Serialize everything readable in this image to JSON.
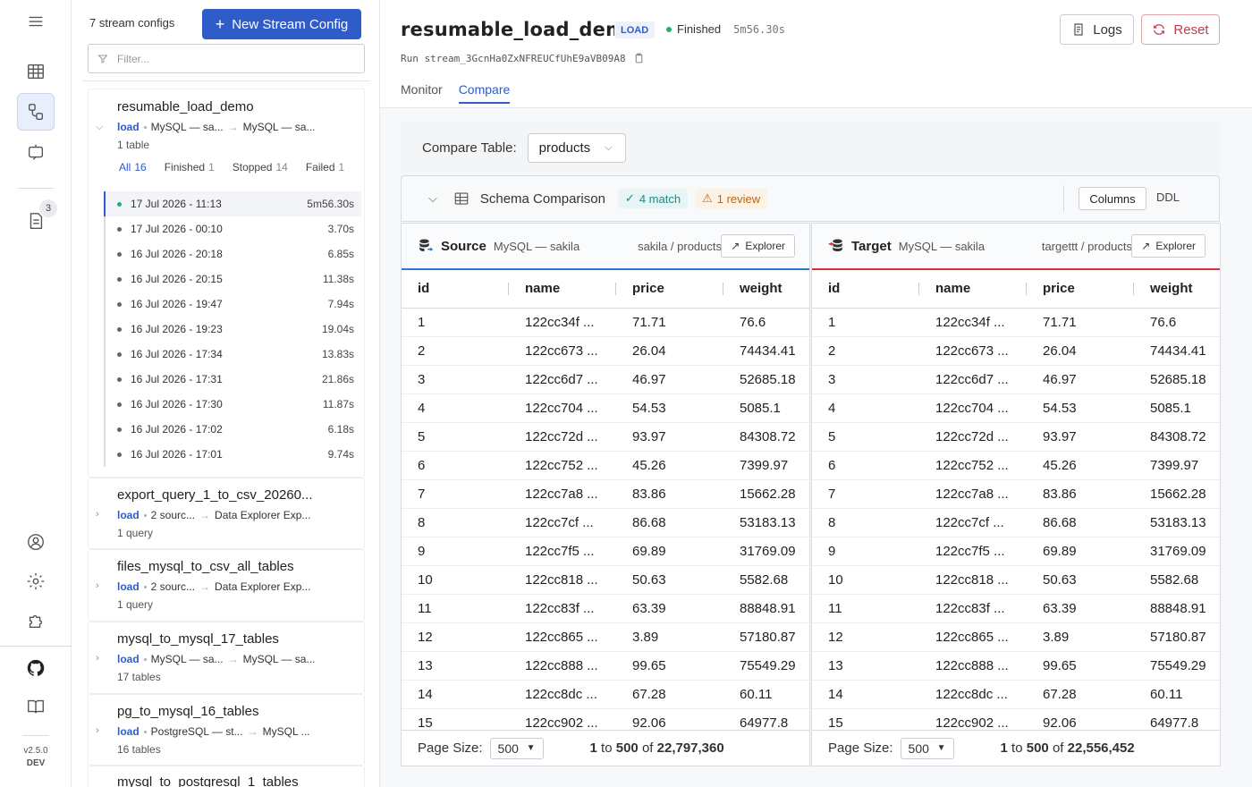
{
  "app": {
    "version": "v2.5.0",
    "env": "DEV",
    "notif_count": "3"
  },
  "streams": {
    "count_label": "7 stream configs",
    "new_button": "New Stream Config",
    "filter_placeholder": "Filter...",
    "configs": [
      {
        "name": "resumable_load_demo",
        "mode": "load",
        "source": "MySQL — sa...",
        "target": "MySQL — sa...",
        "sub": "1 table"
      },
      {
        "name": "export_query_1_to_csv_20260...",
        "mode": "load",
        "source": "2 sourc...",
        "target": "Data Explorer Exp...",
        "sub": "1 query"
      },
      {
        "name": "files_mysql_to_csv_all_tables",
        "mode": "load",
        "source": "2 sourc...",
        "target": "Data Explorer Exp...",
        "sub": "1 query"
      },
      {
        "name": "mysql_to_mysql_17_tables",
        "mode": "load",
        "source": "MySQL — sa...",
        "target": "MySQL — sa...",
        "sub": "17 tables"
      },
      {
        "name": "pg_to_mysql_16_tables",
        "mode": "load",
        "source": "PostgreSQL — st...",
        "target": "MySQL ...",
        "sub": "16 tables"
      },
      {
        "name": "mysql_to_postgresql_1_tables",
        "mode": "load",
        "source": "",
        "target": "",
        "sub": ""
      }
    ],
    "run_tabs": [
      {
        "label": "All",
        "count": "16"
      },
      {
        "label": "Finished",
        "count": "1"
      },
      {
        "label": "Stopped",
        "count": "14"
      },
      {
        "label": "Failed",
        "count": "1"
      }
    ],
    "runs": [
      {
        "date": "17 Jul 2026 - 11:13",
        "duration": "5m56.30s"
      },
      {
        "date": "17 Jul 2026 - 00:10",
        "duration": "3.70s"
      },
      {
        "date": "16 Jul 2026 - 20:18",
        "duration": "6.85s"
      },
      {
        "date": "16 Jul 2026 - 20:15",
        "duration": "11.38s"
      },
      {
        "date": "16 Jul 2026 - 19:47",
        "duration": "7.94s"
      },
      {
        "date": "16 Jul 2026 - 19:23",
        "duration": "19.04s"
      },
      {
        "date": "16 Jul 2026 - 17:34",
        "duration": "13.83s"
      },
      {
        "date": "16 Jul 2026 - 17:31",
        "duration": "21.86s"
      },
      {
        "date": "16 Jul 2026 - 17:30",
        "duration": "11.87s"
      },
      {
        "date": "16 Jul 2026 - 17:02",
        "duration": "6.18s"
      },
      {
        "date": "16 Jul 2026 - 17:01",
        "duration": "9.74s"
      }
    ]
  },
  "header": {
    "title": "resumable_load_demo",
    "tag": "LOAD",
    "status": "Finished",
    "duration": "5m56.30s",
    "run_id": "Run stream_3GcnHa0ZxNFREUCfUhE9aVB09A8",
    "logs_button": "Logs",
    "reset_button": "Reset",
    "tabs": [
      "Monitor",
      "Compare"
    ]
  },
  "compare": {
    "table_label": "Compare Table:",
    "table_value": "products",
    "schema_label": "Schema Comparison",
    "match_label": "4 match",
    "review_label": "1 review",
    "columns_button": "Columns",
    "ddl_button": "DDL",
    "source": {
      "title": "Source",
      "conn": "MySQL — sakila",
      "path": "sakila / products",
      "explorer": "Explorer",
      "page_size": "500",
      "range_from": "1",
      "range_to": "500",
      "total": "22,797,360"
    },
    "target": {
      "title": "Target",
      "conn": "MySQL — sakila",
      "path": "targettt / products",
      "explorer": "Explorer",
      "page_size": "500",
      "range_from": "1",
      "range_to": "500",
      "total": "22,556,452"
    },
    "page_size_label": "Page Size:",
    "columns": [
      "id",
      "name",
      "price",
      "weight"
    ],
    "rows": [
      [
        "1",
        "122cc34f ...",
        "71.71",
        "76.6"
      ],
      [
        "2",
        "122cc673 ...",
        "26.04",
        "74434.41"
      ],
      [
        "3",
        "122cc6d7 ...",
        "46.97",
        "52685.18"
      ],
      [
        "4",
        "122cc704 ...",
        "54.53",
        "5085.1"
      ],
      [
        "5",
        "122cc72d ...",
        "93.97",
        "84308.72"
      ],
      [
        "6",
        "122cc752 ...",
        "45.26",
        "7399.97"
      ],
      [
        "7",
        "122cc7a8 ...",
        "83.86",
        "15662.28"
      ],
      [
        "8",
        "122cc7cf ...",
        "86.68",
        "53183.13"
      ],
      [
        "9",
        "122cc7f5 ...",
        "69.89",
        "31769.09"
      ],
      [
        "10",
        "122cc818 ...",
        "50.63",
        "5582.68"
      ],
      [
        "11",
        "122cc83f ...",
        "63.39",
        "88848.91"
      ],
      [
        "12",
        "122cc865 ...",
        "3.89",
        "57180.87"
      ],
      [
        "13",
        "122cc888 ...",
        "99.65",
        "75549.29"
      ],
      [
        "14",
        "122cc8dc ...",
        "67.28",
        "60.11"
      ],
      [
        "15",
        "122cc902 ...",
        "92.06",
        "64977.8"
      ]
    ]
  }
}
